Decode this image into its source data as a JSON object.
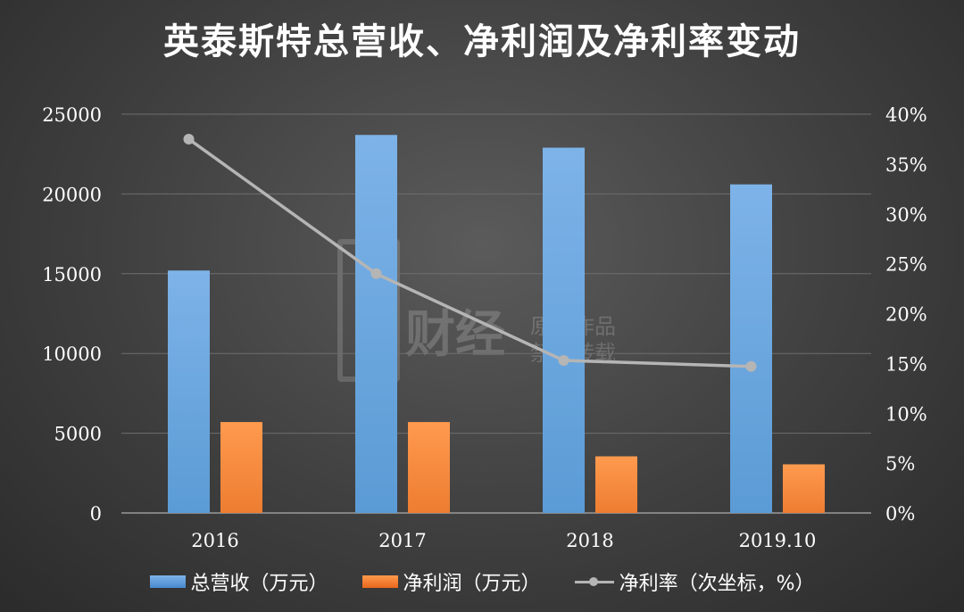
{
  "title": "英泰斯特总营收、净利润及净利率变动",
  "watermark": {
    "line1": "财经",
    "line2": "原创作品",
    "line3": "禁止转载"
  },
  "legend": {
    "revenue": "总营收（万元）",
    "profit": "净利润（万元）",
    "margin": "净利率（次坐标，%）"
  },
  "colors": {
    "revenue": "#5b9bd5",
    "profit": "#ed7d31",
    "margin": "#b5b5b5",
    "grid": "#6e6e6e"
  },
  "chart_data": {
    "type": "bar",
    "categories": [
      "2016",
      "2017",
      "2018",
      "2019.10"
    ],
    "series": [
      {
        "name": "总营收（万元）",
        "type": "bar",
        "axis": "left",
        "values": [
          15200,
          23700,
          22900,
          20600
        ]
      },
      {
        "name": "净利润（万元）",
        "type": "bar",
        "axis": "left",
        "values": [
          5700,
          5700,
          3550,
          3050
        ]
      },
      {
        "name": "净利率（次坐标，%）",
        "type": "line",
        "axis": "right",
        "values": [
          37.5,
          24.0,
          15.3,
          14.7
        ]
      }
    ],
    "y_left": {
      "min": 0,
      "max": 25000,
      "ticks": [
        "0",
        "5000",
        "10000",
        "15000",
        "20000",
        "25000"
      ]
    },
    "y_right": {
      "min": 0,
      "max": 40,
      "ticks": [
        "0%",
        "5%",
        "10%",
        "15%",
        "20%",
        "25%",
        "30%",
        "35%",
        "40%"
      ]
    },
    "grid": true,
    "legend_position": "bottom"
  }
}
